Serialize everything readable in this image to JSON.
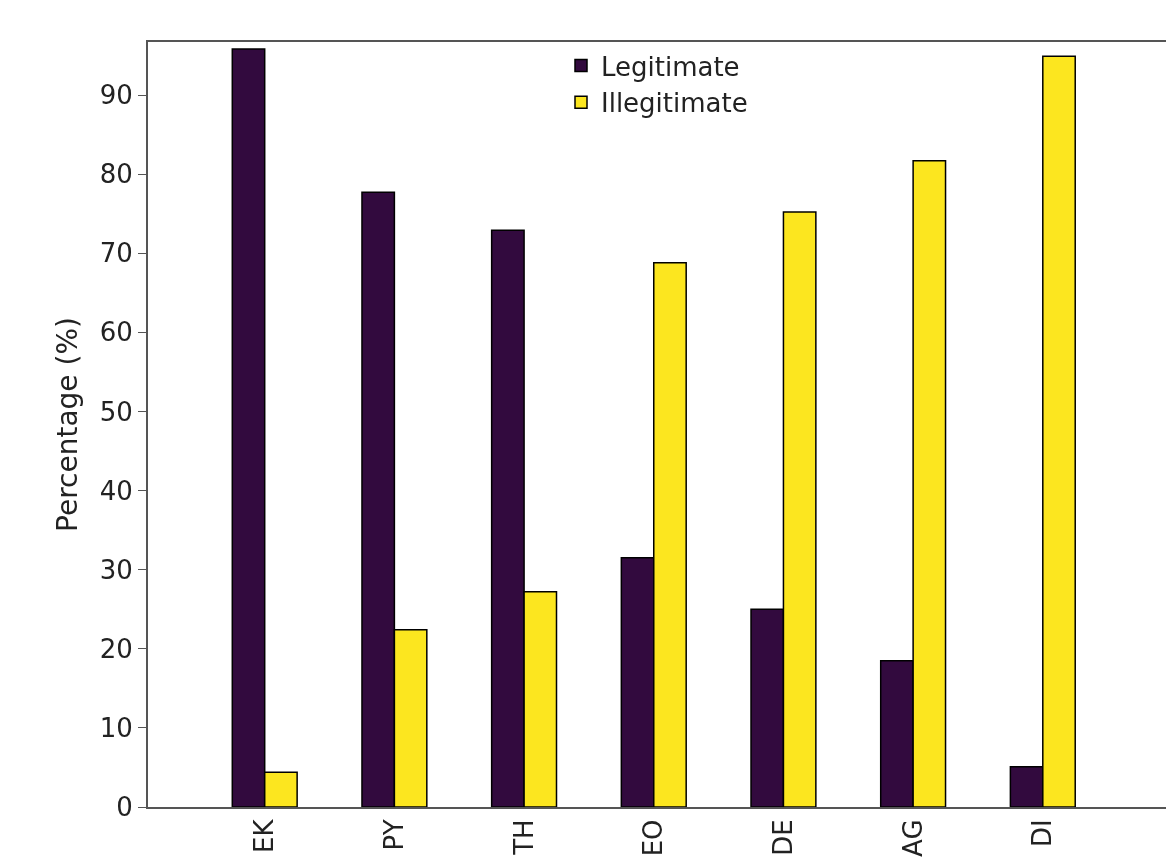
{
  "chart_data": {
    "type": "bar",
    "ylabel": "Percentage (%)",
    "categories": [
      "EK",
      "PY",
      "TH",
      "EO",
      "DE",
      "AG",
      "DI"
    ],
    "series": [
      {
        "name": "Legitimate",
        "color": "#320a3e",
        "values": [
          95.8,
          77.7,
          72.9,
          31.5,
          25.0,
          18.5,
          5.1
        ]
      },
      {
        "name": "Illegitimate",
        "color": "#fce61f",
        "values": [
          4.4,
          22.4,
          27.2,
          68.8,
          75.2,
          81.7,
          94.9
        ]
      }
    ],
    "ylim": [
      0,
      96.7
    ],
    "yticks": [
      0,
      10,
      20,
      30,
      40,
      50,
      60,
      70,
      80,
      90
    ],
    "grid": false,
    "legend": "top"
  }
}
